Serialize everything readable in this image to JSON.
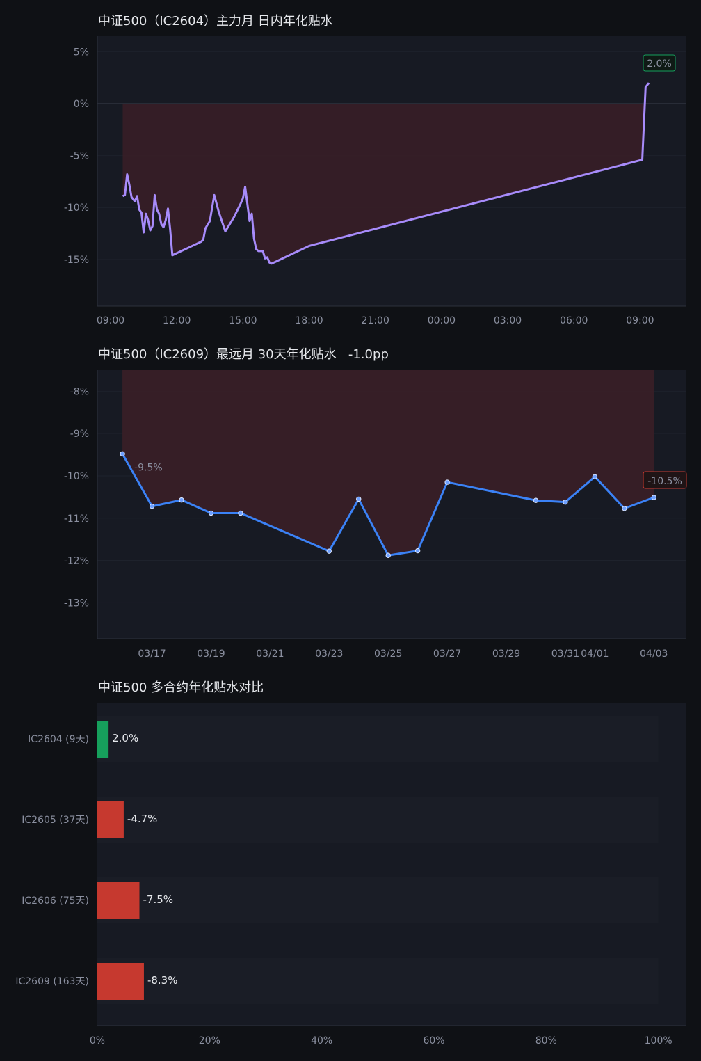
{
  "colors": {
    "background": "#0f1115",
    "plot_bg": "#171a23",
    "line_purple": "#a78bfa",
    "line_blue": "#3b82f6",
    "fill_red": "#3a1f27",
    "positive": "#16a05c",
    "negative": "#c6392f",
    "tick": "#8b90a0"
  },
  "chart_data": [
    {
      "type": "area",
      "title": "中证500（IC2604）主力月 日内年化贴水",
      "xlabel": "",
      "ylabel": "",
      "y_ticks": [
        "5%",
        "0%",
        "-5%",
        "-10%",
        "-15%"
      ],
      "x_ticks": [
        "09:00",
        "12:00",
        "15:00",
        "18:00",
        "21:00",
        "00:00",
        "03:00",
        "06:00",
        "09:00"
      ],
      "ylim": [
        -19.5,
        6.5
      ],
      "x_unit": "hours since day-1 09:00",
      "xlim": [
        -0.6,
        26.1
      ],
      "series": [
        {
          "values_x": [
            0.55,
            0.65,
            0.75,
            0.85,
            0.95,
            1.1,
            1.2,
            1.3,
            1.4,
            1.5,
            1.6,
            1.7,
            1.8,
            1.9,
            2.0,
            2.1,
            2.2,
            2.3,
            2.4,
            2.5,
            2.6,
            2.7,
            2.8,
            2.9,
            3.0,
            3.1,
            3.2,
            3.3,
            3.4,
            3.5,
            3.6,
            3.7,
            3.8,
            3.9,
            4.0,
            4.1,
            4.2,
            4.3,
            4.5,
            4.7,
            4.9,
            5.2,
            5.6,
            5.9,
            6.0,
            6.1,
            6.3,
            6.4,
            6.5,
            6.6,
            6.7,
            6.8,
            6.9,
            7.0,
            7.1,
            7.2,
            7.3,
            7.4,
            7.5,
            7.6,
            7.7,
            7.8,
            7.9,
            8.0,
            8.1,
            8.2,
            8.3,
            8.4,
            8.5,
            8.6,
            8.7,
            8.8,
            8.9,
            9.0,
            24.1,
            24.25,
            24.4
          ],
          "values": [
            -8.9,
            -8.8,
            -6.8,
            -7.8,
            -9.0,
            -9.4,
            -8.9,
            -10.2,
            -10.5,
            -12.4,
            -10.6,
            -11.2,
            -12.2,
            -11.8,
            -8.8,
            -10.2,
            -10.6,
            -11.6,
            -11.9,
            -11.2,
            -10.1,
            -12.1,
            -14.6,
            -14.5,
            -14.4,
            -14.3,
            -14.2,
            -14.1,
            -14.0,
            -13.9,
            -13.8,
            -13.7,
            -13.6,
            -13.5,
            -13.4,
            -13.3,
            -13.1,
            -12.0,
            -11.3,
            -8.8,
            -10.4,
            -12.3,
            -10.9,
            -9.6,
            -9.1,
            -8.0,
            -11.3,
            -10.6,
            -13.0,
            -14.0,
            -14.2,
            -14.2,
            -14.2,
            -14.9,
            -14.8,
            -15.3,
            -15.4,
            -15.3,
            -15.2,
            -15.1,
            -15.0,
            -14.9,
            -14.8,
            -14.7,
            -14.6,
            -14.5,
            -14.4,
            -14.3,
            -14.2,
            -14.1,
            -14.0,
            -13.9,
            -13.8,
            -13.7,
            -5.4,
            1.6,
            2.0
          ]
        }
      ],
      "end_label": "2.0%"
    },
    {
      "type": "line",
      "title": "中证500（IC2609）最远月 30天年化贴水   -1.0pp",
      "xlabel": "",
      "ylabel": "",
      "y_ticks": [
        "-8%",
        "-9%",
        "-10%",
        "-11%",
        "-12%",
        "-13%"
      ],
      "x_ticks": [
        "03/17",
        "03/19",
        "03/21",
        "03/23",
        "03/25",
        "03/27",
        "03/29",
        "03/31",
        "04/01",
        "04/03"
      ],
      "ylim": [
        -13.85,
        -7.5
      ],
      "series": [
        {
          "x": [
            "03/16",
            "03/17",
            "03/18",
            "03/19",
            "03/20",
            "03/23",
            "03/24",
            "03/25",
            "03/26",
            "03/27",
            "03/30",
            "03/31",
            "04/01",
            "04/02",
            "04/03"
          ],
          "values": [
            -9.48,
            -10.72,
            -10.57,
            -10.88,
            -10.88,
            -11.78,
            -10.55,
            -11.88,
            -11.77,
            -10.15,
            -10.58,
            -10.62,
            -10.02,
            -10.77,
            -10.51
          ]
        }
      ],
      "start_label": "-9.5%",
      "end_label": "-10.5%"
    },
    {
      "type": "bar",
      "orientation": "horizontal",
      "title": "中证500 多合约年化贴水对比",
      "xlabel": "",
      "ylabel": "",
      "categories": [
        "IC2604 (9天)",
        "IC2605 (37天)",
        "IC2606 (75天)",
        "IC2609 (163天)"
      ],
      "values": [
        2.0,
        -4.7,
        -7.5,
        -8.3
      ],
      "value_labels": [
        "2.0%",
        "-4.7%",
        "-7.5%",
        "-8.3%"
      ],
      "x_ticks": [
        "0%",
        "20%",
        "40%",
        "60%",
        "80%",
        "100%"
      ],
      "xlim": [
        0,
        105
      ]
    }
  ]
}
